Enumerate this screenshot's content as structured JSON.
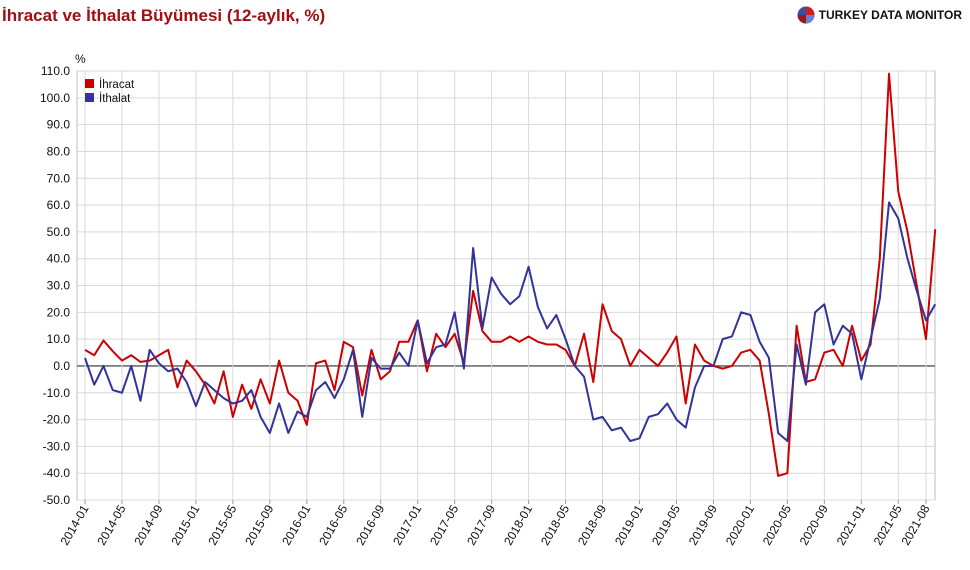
{
  "header": {
    "title": "İhracat ve İthalat Büyümesi (12-aylık, %)",
    "brand": "TURKEY DATA MONITOR"
  },
  "chart_data": {
    "type": "line",
    "title": "İhracat ve İthalat Büyümesi (12-aylık, %)",
    "unit_label": "%",
    "ylim": [
      -50,
      110
    ],
    "yticks": [
      110,
      100,
      90,
      80,
      70,
      60,
      50,
      40,
      30,
      20,
      10,
      0,
      -10,
      -20,
      -30,
      -40,
      -50
    ],
    "ytick_labels": [
      "110.0",
      "100.0",
      "90.0",
      "80.0",
      "70.0",
      "60.0",
      "50.0",
      "40.0",
      "30.0",
      "20.0",
      "10.0",
      "0.0",
      "-10.0",
      "-20.0",
      "-30.0",
      "-40.0",
      "-50.0"
    ],
    "x_tick_labels": [
      "2014-01",
      "2014-05",
      "2014-09",
      "2015-01",
      "2015-05",
      "2015-09",
      "2016-01",
      "2016-05",
      "2016-09",
      "2017-01",
      "2017-05",
      "2017-09",
      "2018-01",
      "2018-05",
      "2018-09",
      "2019-01",
      "2019-05",
      "2019-09",
      "2020-01",
      "2020-05",
      "2020-09",
      "2021-01",
      "2021-05",
      "2021-08"
    ],
    "x_start": "2014-01",
    "x_end": "2021-08",
    "grid": true,
    "legend": "top-left",
    "series": [
      {
        "name": "İhracat",
        "color": "#cc0000",
        "values": [
          6,
          4,
          9.5,
          5.5,
          2,
          4,
          1.5,
          2,
          4,
          6,
          -8,
          2,
          -2,
          -7,
          -14,
          -2,
          -19,
          -7,
          -16,
          -5,
          -14,
          2,
          -10,
          -13,
          -22,
          1,
          2,
          -9,
          9,
          7,
          -11,
          6,
          -5,
          -2,
          9,
          9,
          17,
          -2,
          12,
          7,
          12,
          1,
          28,
          13,
          9,
          9,
          11,
          9,
          11,
          9,
          8,
          8,
          6,
          0,
          12,
          -6,
          23,
          13,
          10,
          0,
          6,
          3,
          0,
          5,
          11,
          -14,
          8,
          2,
          0,
          -1,
          0,
          5,
          6,
          2,
          -18,
          -41,
          -40,
          15,
          -6,
          -5,
          5,
          6,
          0,
          15,
          2,
          8,
          40,
          109,
          65,
          50,
          30,
          10,
          51
        ]
      },
      {
        "name": "İthalat",
        "color": "#333399",
        "values": [
          3,
          -7,
          0,
          -9,
          -10,
          0,
          -13,
          6,
          1,
          -2,
          -1,
          -6,
          -15,
          -6,
          -9,
          -12,
          -14,
          -13,
          -9,
          -19,
          -25,
          -14,
          -25,
          -17,
          -19,
          -9,
          -6,
          -12,
          -5,
          6,
          -19,
          3,
          -1,
          -1,
          5,
          0,
          17,
          1,
          7,
          8,
          20,
          -1,
          44,
          14,
          33,
          27,
          23,
          26,
          37,
          22,
          14,
          19,
          10,
          0,
          -4,
          -20,
          -19,
          -24,
          -23,
          -28,
          -27,
          -19,
          -18,
          -14,
          -20,
          -23,
          -8,
          0,
          0,
          10,
          11,
          20,
          19,
          9,
          3,
          -25,
          -28,
          8,
          -7,
          20,
          23,
          8,
          15,
          12,
          -5,
          10,
          25,
          61,
          55,
          40,
          28,
          17,
          23
        ]
      }
    ]
  }
}
